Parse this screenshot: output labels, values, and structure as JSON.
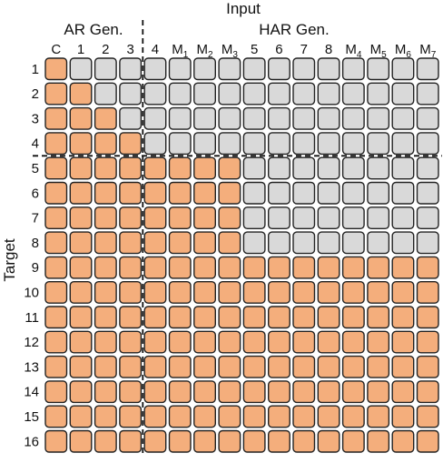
{
  "title": "Input",
  "section_left_label": "AR Gen.",
  "section_right_label": "HAR Gen.",
  "y_axis_label": "Target",
  "colors": {
    "attend": "#F4AE7C",
    "masked": "#D9D9D9",
    "border": "#222222",
    "divider": "#111111"
  },
  "columns": [
    {
      "main": "C",
      "sub": ""
    },
    {
      "main": "1",
      "sub": ""
    },
    {
      "main": "2",
      "sub": ""
    },
    {
      "main": "3",
      "sub": ""
    },
    {
      "main": "4",
      "sub": ""
    },
    {
      "main": "M",
      "sub": "1"
    },
    {
      "main": "M",
      "sub": "2"
    },
    {
      "main": "M",
      "sub": "3"
    },
    {
      "main": "5",
      "sub": ""
    },
    {
      "main": "6",
      "sub": ""
    },
    {
      "main": "7",
      "sub": ""
    },
    {
      "main": "8",
      "sub": ""
    },
    {
      "main": "M",
      "sub": "4"
    },
    {
      "main": "M",
      "sub": "5"
    },
    {
      "main": "M",
      "sub": "6"
    },
    {
      "main": "M",
      "sub": "7"
    }
  ],
  "rows": [
    "1",
    "2",
    "3",
    "4",
    "5",
    "6",
    "7",
    "8",
    "9",
    "10",
    "11",
    "12",
    "13",
    "14",
    "15",
    "16"
  ],
  "matrix": [
    [
      1,
      0,
      0,
      0,
      0,
      0,
      0,
      0,
      0,
      0,
      0,
      0,
      0,
      0,
      0,
      0
    ],
    [
      1,
      1,
      0,
      0,
      0,
      0,
      0,
      0,
      0,
      0,
      0,
      0,
      0,
      0,
      0,
      0
    ],
    [
      1,
      1,
      1,
      0,
      0,
      0,
      0,
      0,
      0,
      0,
      0,
      0,
      0,
      0,
      0,
      0
    ],
    [
      1,
      1,
      1,
      1,
      0,
      0,
      0,
      0,
      0,
      0,
      0,
      0,
      0,
      0,
      0,
      0
    ],
    [
      1,
      1,
      1,
      1,
      1,
      1,
      1,
      1,
      0,
      0,
      0,
      0,
      0,
      0,
      0,
      0
    ],
    [
      1,
      1,
      1,
      1,
      1,
      1,
      1,
      1,
      0,
      0,
      0,
      0,
      0,
      0,
      0,
      0
    ],
    [
      1,
      1,
      1,
      1,
      1,
      1,
      1,
      1,
      0,
      0,
      0,
      0,
      0,
      0,
      0,
      0
    ],
    [
      1,
      1,
      1,
      1,
      1,
      1,
      1,
      1,
      0,
      0,
      0,
      0,
      0,
      0,
      0,
      0
    ],
    [
      1,
      1,
      1,
      1,
      1,
      1,
      1,
      1,
      1,
      1,
      1,
      1,
      1,
      1,
      1,
      1
    ],
    [
      1,
      1,
      1,
      1,
      1,
      1,
      1,
      1,
      1,
      1,
      1,
      1,
      1,
      1,
      1,
      1
    ],
    [
      1,
      1,
      1,
      1,
      1,
      1,
      1,
      1,
      1,
      1,
      1,
      1,
      1,
      1,
      1,
      1
    ],
    [
      1,
      1,
      1,
      1,
      1,
      1,
      1,
      1,
      1,
      1,
      1,
      1,
      1,
      1,
      1,
      1
    ],
    [
      1,
      1,
      1,
      1,
      1,
      1,
      1,
      1,
      1,
      1,
      1,
      1,
      1,
      1,
      1,
      1
    ],
    [
      1,
      1,
      1,
      1,
      1,
      1,
      1,
      1,
      1,
      1,
      1,
      1,
      1,
      1,
      1,
      1
    ],
    [
      1,
      1,
      1,
      1,
      1,
      1,
      1,
      1,
      1,
      1,
      1,
      1,
      1,
      1,
      1,
      1
    ],
    [
      1,
      1,
      1,
      1,
      1,
      1,
      1,
      1,
      1,
      1,
      1,
      1,
      1,
      1,
      1,
      1
    ]
  ],
  "vertical_divider_after_column": 4,
  "horizontal_divider_after_row": 4
}
